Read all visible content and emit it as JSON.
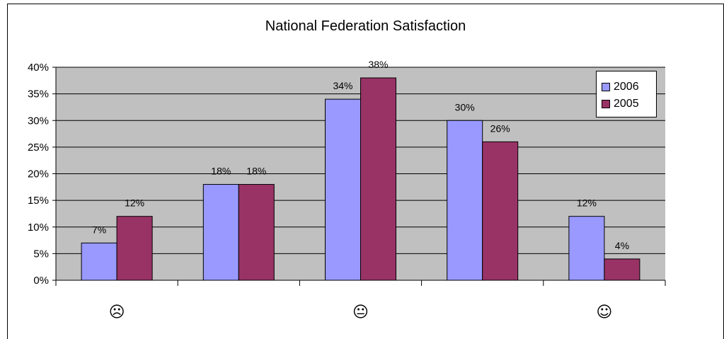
{
  "chart_data": {
    "type": "bar",
    "title": "National Federation Satisfaction",
    "categories": [
      "☹",
      "",
      "😐",
      "",
      "☺"
    ],
    "series": [
      {
        "name": "2006",
        "values": [
          7,
          18,
          34,
          30,
          12
        ],
        "labels": [
          "7%",
          "18%",
          "34%",
          "30%",
          "12%"
        ],
        "color": "#9999ff"
      },
      {
        "name": "2005",
        "values": [
          12,
          18,
          38,
          26,
          4
        ],
        "labels": [
          "12%",
          "18%",
          "38%",
          "26%",
          "4%"
        ],
        "color": "#993366"
      }
    ],
    "ylim": [
      0,
      40
    ],
    "yticks": [
      "0%",
      "5%",
      "10%",
      "15%",
      "20%",
      "25%",
      "30%",
      "35%",
      "40%"
    ],
    "grid": true,
    "legend_position": "top-right",
    "plot_background": "#c0c0c0"
  }
}
